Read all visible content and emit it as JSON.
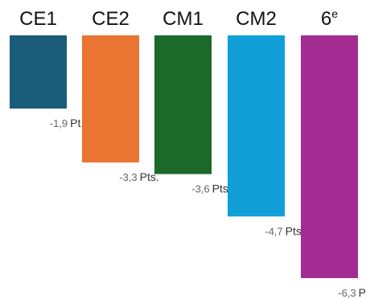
{
  "chart_data": {
    "type": "bar",
    "title": "",
    "xlabel": "",
    "ylabel": "",
    "ylim": [
      -6.3,
      0
    ],
    "categories": [
      "CE1",
      "CE2",
      "CM1",
      "CM2",
      "6"
    ],
    "category_superscripts": [
      "",
      "",
      "",
      "",
      "e"
    ],
    "values": [
      -1.9,
      -3.3,
      -3.6,
      -4.7,
      -6.3
    ],
    "value_labels": [
      "-1,9",
      "-3,3",
      "-3,6",
      "-4,7",
      "-6,3"
    ],
    "unit_labels": [
      "Pt.",
      "Pts.",
      "Pts.",
      "Pts.",
      "Pts."
    ],
    "colors": [
      "#1a5c7a",
      "#ea7431",
      "#1c6a2a",
      "#119fd8",
      "#a22c92"
    ],
    "grid": false,
    "legend": "none"
  }
}
